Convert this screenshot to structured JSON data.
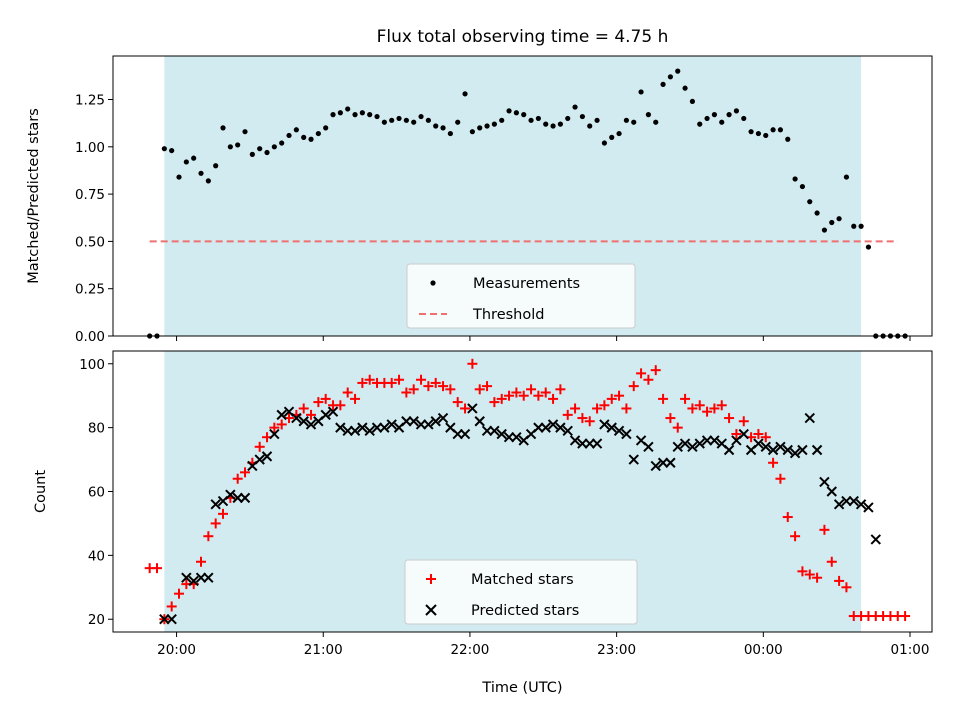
{
  "chart_data": [
    {
      "type": "scatter",
      "title": "Flux total observing time = 4.75 h",
      "xlabel": "",
      "ylabel": "Matched/Predicted stars",
      "xlim": [
        "19:34",
        "01:09"
      ],
      "ylim": [
        0,
        1.48
      ],
      "yticks": [
        "0.00",
        "0.25",
        "0.50",
        "0.75",
        "1.00",
        "1.25"
      ],
      "grid": false,
      "legend_position": "lower-center",
      "observing_window": [
        "19:55",
        "00:40"
      ],
      "window_color": "#d2ebf1",
      "series": [
        {
          "name": "Measurements",
          "marker": "dot",
          "color": "#000000",
          "x": [
            "19:49",
            "19:52",
            "19:55",
            "19:58",
            "20:01",
            "20:04",
            "20:07",
            "20:10",
            "20:13",
            "20:16",
            "20:19",
            "20:22",
            "20:25",
            "20:28",
            "20:31",
            "20:34",
            "20:37",
            "20:40",
            "20:43",
            "20:46",
            "20:49",
            "20:52",
            "20:55",
            "20:58",
            "21:01",
            "21:04",
            "21:07",
            "21:10",
            "21:13",
            "21:16",
            "21:19",
            "21:22",
            "21:25",
            "21:28",
            "21:31",
            "21:34",
            "21:37",
            "21:40",
            "21:43",
            "21:46",
            "21:49",
            "21:52",
            "21:55",
            "21:58",
            "22:01",
            "22:04",
            "22:07",
            "22:10",
            "22:13",
            "22:16",
            "22:19",
            "22:22",
            "22:25",
            "22:28",
            "22:31",
            "22:34",
            "22:37",
            "22:40",
            "22:43",
            "22:46",
            "22:49",
            "22:52",
            "22:55",
            "22:58",
            "23:01",
            "23:04",
            "23:07",
            "23:10",
            "23:13",
            "23:16",
            "23:19",
            "23:22",
            "23:25",
            "23:28",
            "23:31",
            "23:34",
            "23:37",
            "23:40",
            "23:43",
            "23:46",
            "23:49",
            "23:52",
            "23:55",
            "23:58",
            "00:01",
            "00:04",
            "00:07",
            "00:10",
            "00:13",
            "00:16",
            "00:19",
            "00:22",
            "00:25",
            "00:28",
            "00:31",
            "00:34",
            "00:37",
            "00:40",
            "00:43",
            "00:46",
            "00:49",
            "00:52",
            "00:55",
            "00:58"
          ],
          "y": [
            0.0,
            0.0,
            0.99,
            0.98,
            0.84,
            0.92,
            0.94,
            0.86,
            0.82,
            0.9,
            1.1,
            1.0,
            1.01,
            1.08,
            0.96,
            0.99,
            0.97,
            1.0,
            1.02,
            1.06,
            1.09,
            1.05,
            1.04,
            1.07,
            1.1,
            1.17,
            1.18,
            1.2,
            1.17,
            1.18,
            1.17,
            1.16,
            1.13,
            1.14,
            1.15,
            1.14,
            1.13,
            1.16,
            1.14,
            1.11,
            1.1,
            1.07,
            1.13,
            1.28,
            1.08,
            1.1,
            1.11,
            1.12,
            1.14,
            1.19,
            1.18,
            1.17,
            1.14,
            1.15,
            1.12,
            1.11,
            1.12,
            1.15,
            1.21,
            1.16,
            1.11,
            1.14,
            1.02,
            1.05,
            1.07,
            1.14,
            1.13,
            1.29,
            1.17,
            1.13,
            1.33,
            1.37,
            1.4,
            1.31,
            1.24,
            1.12,
            1.15,
            1.17,
            1.13,
            1.17,
            1.19,
            1.15,
            1.08,
            1.07,
            1.06,
            1.09,
            1.09,
            1.04,
            0.83,
            0.79,
            0.71,
            0.65,
            0.56,
            0.6,
            0.62,
            0.84,
            0.58,
            0.58,
            0.47,
            0.0,
            0.0,
            0.0,
            0.0,
            0.0
          ]
        },
        {
          "name": "Threshold",
          "marker": "dashed-line",
          "color": "#f07070",
          "x": [
            "19:49",
            "00:55"
          ],
          "y": [
            0.5,
            0.5
          ]
        }
      ]
    },
    {
      "type": "scatter",
      "title": "",
      "xlabel": "Time (UTC)",
      "ylabel": "Count",
      "xlim": [
        "19:34",
        "01:09"
      ],
      "ylim": [
        16,
        104
      ],
      "yticks": [
        "20",
        "40",
        "60",
        "80",
        "100"
      ],
      "xticks": [
        "20:00",
        "21:00",
        "22:00",
        "23:00",
        "00:00",
        "01:00"
      ],
      "grid": false,
      "legend_position": "lower-center",
      "observing_window": [
        "19:55",
        "00:40"
      ],
      "window_color": "#d2ebf1",
      "series": [
        {
          "name": "Matched stars",
          "marker": "plus",
          "color": "#ff0000",
          "x": [
            "19:49",
            "19:52",
            "19:55",
            "19:58",
            "20:01",
            "20:04",
            "20:07",
            "20:10",
            "20:13",
            "20:16",
            "20:19",
            "20:22",
            "20:25",
            "20:28",
            "20:31",
            "20:34",
            "20:37",
            "20:40",
            "20:43",
            "20:46",
            "20:49",
            "20:52",
            "20:55",
            "20:58",
            "21:01",
            "21:04",
            "21:07",
            "21:10",
            "21:13",
            "21:16",
            "21:19",
            "21:22",
            "21:25",
            "21:28",
            "21:31",
            "21:34",
            "21:37",
            "21:40",
            "21:43",
            "21:46",
            "21:49",
            "21:52",
            "21:55",
            "21:58",
            "22:01",
            "22:04",
            "22:07",
            "22:10",
            "22:13",
            "22:16",
            "22:19",
            "22:22",
            "22:25",
            "22:28",
            "22:31",
            "22:34",
            "22:37",
            "22:40",
            "22:43",
            "22:46",
            "22:49",
            "22:52",
            "22:55",
            "22:58",
            "23:01",
            "23:04",
            "23:07",
            "23:10",
            "23:13",
            "23:16",
            "23:19",
            "23:22",
            "23:25",
            "23:28",
            "23:31",
            "23:34",
            "23:37",
            "23:40",
            "23:43",
            "23:46",
            "23:49",
            "23:52",
            "23:55",
            "23:58",
            "00:01",
            "00:04",
            "00:07",
            "00:10",
            "00:13",
            "00:16",
            "00:19",
            "00:22",
            "00:25",
            "00:28",
            "00:31",
            "00:34",
            "00:37",
            "00:40",
            "00:43",
            "00:46",
            "00:49",
            "00:52",
            "00:55",
            "00:58"
          ],
          "y": [
            36,
            36,
            20,
            24,
            28,
            31,
            31,
            38,
            46,
            50,
            53,
            58,
            64,
            66,
            69,
            74,
            77,
            80,
            81,
            83,
            84,
            86,
            84,
            88,
            89,
            87,
            87,
            91,
            89,
            94,
            95,
            94,
            94,
            94,
            95,
            91,
            92,
            95,
            93,
            94,
            93,
            92,
            88,
            86,
            100,
            92,
            93,
            88,
            89,
            90,
            91,
            90,
            92,
            90,
            91,
            89,
            92,
            84,
            86,
            83,
            82,
            86,
            87,
            89,
            90,
            86,
            93,
            97,
            95,
            98,
            89,
            83,
            80,
            89,
            86,
            87,
            85,
            86,
            87,
            83,
            78,
            82,
            77,
            78,
            77,
            69,
            64,
            52,
            46,
            35,
            34,
            33,
            48,
            38,
            32,
            30,
            21,
            21,
            21,
            21,
            21,
            21,
            21,
            21
          ]
        },
        {
          "name": "Predicted stars",
          "marker": "cross",
          "color": "#000000",
          "x": [
            "19:55",
            "19:58",
            "20:04",
            "20:07",
            "20:10",
            "20:13",
            "20:16",
            "20:19",
            "20:22",
            "20:25",
            "20:28",
            "20:31",
            "20:34",
            "20:37",
            "20:40",
            "20:43",
            "20:46",
            "20:49",
            "20:52",
            "20:55",
            "20:58",
            "21:01",
            "21:04",
            "21:07",
            "21:10",
            "21:13",
            "21:16",
            "21:19",
            "21:22",
            "21:25",
            "21:28",
            "21:31",
            "21:34",
            "21:37",
            "21:40",
            "21:43",
            "21:46",
            "21:49",
            "21:52",
            "21:55",
            "21:58",
            "22:01",
            "22:04",
            "22:07",
            "22:10",
            "22:13",
            "22:16",
            "22:19",
            "22:22",
            "22:25",
            "22:28",
            "22:31",
            "22:34",
            "22:37",
            "22:40",
            "22:43",
            "22:46",
            "22:49",
            "22:52",
            "22:55",
            "22:58",
            "23:01",
            "23:04",
            "23:07",
            "23:10",
            "23:13",
            "23:16",
            "23:19",
            "23:22",
            "23:25",
            "23:28",
            "23:31",
            "23:34",
            "23:37",
            "23:40",
            "23:43",
            "23:46",
            "23:49",
            "23:52",
            "23:55",
            "23:58",
            "00:01",
            "00:04",
            "00:07",
            "00:10",
            "00:13",
            "00:16",
            "00:19",
            "00:22",
            "00:25",
            "00:28",
            "00:31",
            "00:34",
            "00:37",
            "00:40",
            "00:43",
            "00:46"
          ],
          "y": [
            20,
            20,
            33,
            32,
            33,
            33,
            56,
            57,
            59,
            58,
            58,
            68,
            70,
            71,
            78,
            84,
            85,
            83,
            82,
            81,
            82,
            84,
            85,
            80,
            79,
            79,
            80,
            79,
            80,
            80,
            81,
            80,
            82,
            82,
            81,
            81,
            82,
            83,
            80,
            78,
            78,
            86,
            82,
            79,
            79,
            78,
            77,
            77,
            76,
            78,
            80,
            80,
            81,
            80,
            79,
            76,
            75,
            75,
            75,
            81,
            80,
            79,
            78,
            70,
            76,
            74,
            68,
            69,
            69,
            74,
            75,
            74,
            75,
            76,
            76,
            75,
            73,
            76,
            78,
            73,
            75,
            74,
            73,
            74,
            73,
            72,
            73,
            83,
            73,
            63,
            60,
            56,
            57,
            57,
            56,
            55,
            45
          ]
        }
      ]
    }
  ]
}
